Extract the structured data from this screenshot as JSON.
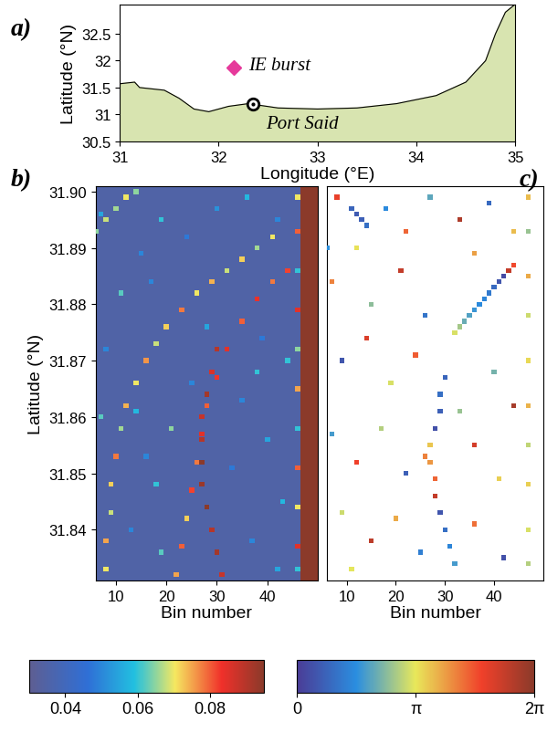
{
  "chart_data": [
    {
      "type": "map",
      "panel": "a)",
      "x_label": "Longitude (°E)",
      "y_label": "Latitude (°N)",
      "xlim": [
        31,
        35
      ],
      "xticks": [
        31,
        32,
        33,
        34,
        35
      ],
      "ylim": [
        30.5,
        33.05
      ],
      "yticks": [
        30.5,
        31,
        31.5,
        32,
        32.5
      ],
      "color": "#d8e4b0",
      "coastline": {
        "lon": [
          31.0,
          31.15,
          31.2,
          31.45,
          31.6,
          31.75,
          31.9,
          32.1,
          32.3,
          32.6,
          33.0,
          33.4,
          33.8,
          34.2,
          34.5,
          34.7,
          34.8,
          34.9,
          35.0
        ],
        "lat": [
          31.57,
          31.6,
          31.5,
          31.45,
          31.3,
          31.1,
          31.05,
          31.15,
          31.2,
          31.12,
          31.1,
          31.12,
          31.2,
          31.35,
          31.6,
          32.0,
          32.5,
          32.9,
          33.05
        ]
      },
      "points": [
        {
          "name": "IE burst",
          "lon": 32.15,
          "lat": 31.87,
          "color": "#e6399b",
          "marker": "diamond"
        },
        {
          "name": "Port Said",
          "lon": 32.35,
          "lat": 31.2,
          "color": "#000000",
          "marker": "circle"
        }
      ]
    },
    {
      "type": "heatmap",
      "panel": "b)",
      "x_label": "Bin number",
      "y_label": "Latitude (°N)",
      "xlim": [
        6,
        50
      ],
      "xticks": [
        10,
        20,
        30,
        40
      ],
      "ylim": [
        31.831,
        31.901
      ],
      "yticks": [
        31.84,
        31.85,
        31.86,
        31.87,
        31.88,
        31.89,
        {
          "value": 31.9,
          "label": "31.90"
        }
      ],
      "background": 0.035,
      "strip": {
        "bins": [
          47,
          50
        ],
        "value": 0.095
      },
      "cells": [
        [
          6,
          31.893,
          0.065
        ],
        [
          8,
          31.895,
          0.068
        ],
        [
          10,
          31.897,
          0.066
        ],
        [
          12,
          31.899,
          0.07
        ],
        [
          14,
          31.9,
          0.065
        ],
        [
          8,
          31.833,
          0.07
        ],
        [
          8,
          31.838,
          0.075
        ],
        [
          9,
          31.843,
          0.068
        ],
        [
          9,
          31.848,
          0.072
        ],
        [
          10,
          31.853,
          0.078
        ],
        [
          11,
          31.858,
          0.066
        ],
        [
          12,
          31.862,
          0.074
        ],
        [
          14,
          31.866,
          0.07
        ],
        [
          16,
          31.87,
          0.076
        ],
        [
          18,
          31.873,
          0.068
        ],
        [
          20,
          31.876,
          0.072
        ],
        [
          23,
          31.879,
          0.078
        ],
        [
          26,
          31.882,
          0.07
        ],
        [
          29,
          31.884,
          0.074
        ],
        [
          32,
          31.886,
          0.068
        ],
        [
          35,
          31.888,
          0.072
        ],
        [
          38,
          31.89,
          0.066
        ],
        [
          41,
          31.892,
          0.07
        ],
        [
          22,
          31.832,
          0.075
        ],
        [
          23,
          31.837,
          0.08
        ],
        [
          24,
          31.842,
          0.072
        ],
        [
          25,
          31.847,
          0.082
        ],
        [
          26,
          31.852,
          0.078
        ],
        [
          27,
          31.857,
          0.085
        ],
        [
          28,
          31.862,
          0.08
        ],
        [
          30,
          31.867,
          0.083
        ],
        [
          32,
          31.872,
          0.085
        ],
        [
          35,
          31.877,
          0.08
        ],
        [
          38,
          31.881,
          0.084
        ],
        [
          41,
          31.884,
          0.078
        ],
        [
          44,
          31.886,
          0.082
        ],
        [
          31,
          31.832,
          0.088
        ],
        [
          30,
          31.836,
          0.092
        ],
        [
          29,
          31.84,
          0.09
        ],
        [
          28,
          31.844,
          0.095
        ],
        [
          27,
          31.848,
          0.093
        ],
        [
          27,
          31.852,
          0.095
        ],
        [
          27,
          31.856,
          0.09
        ],
        [
          27,
          31.86,
          0.088
        ],
        [
          28,
          31.864,
          0.092
        ],
        [
          29,
          31.868,
          0.086
        ],
        [
          30,
          31.872,
          0.09
        ],
        [
          7,
          31.896,
          0.055
        ],
        [
          15,
          31.889,
          0.05
        ],
        [
          19,
          31.895,
          0.06
        ],
        [
          24,
          31.892,
          0.048
        ],
        [
          30,
          31.897,
          0.052
        ],
        [
          36,
          31.899,
          0.058
        ],
        [
          42,
          31.895,
          0.05
        ],
        [
          11,
          31.882,
          0.062
        ],
        [
          17,
          31.884,
          0.05
        ],
        [
          28,
          31.876,
          0.055
        ],
        [
          39,
          31.874,
          0.048
        ],
        [
          44,
          31.87,
          0.06
        ],
        [
          8,
          31.872,
          0.05
        ],
        [
          14,
          31.861,
          0.058
        ],
        [
          21,
          31.858,
          0.065
        ],
        [
          35,
          31.863,
          0.05
        ],
        [
          40,
          31.856,
          0.055
        ],
        [
          18,
          31.848,
          0.06
        ],
        [
          33,
          31.851,
          0.048
        ],
        [
          43,
          31.845,
          0.058
        ],
        [
          13,
          31.84,
          0.05
        ],
        [
          19,
          31.836,
          0.062
        ],
        [
          37,
          31.838,
          0.05
        ],
        [
          42,
          31.833,
          0.055
        ],
        [
          25,
          31.866,
          0.05
        ],
        [
          7,
          31.86,
          0.062
        ],
        [
          16,
          31.853,
          0.05
        ],
        [
          38,
          31.868,
          0.06
        ],
        [
          46,
          31.899,
          0.07
        ],
        [
          46,
          31.893,
          0.08
        ],
        [
          46,
          31.886,
          0.06
        ],
        [
          46,
          31.879,
          0.085
        ],
        [
          46,
          31.872,
          0.065
        ],
        [
          46,
          31.865,
          0.075
        ],
        [
          46,
          31.858,
          0.06
        ],
        [
          46,
          31.851,
          0.08
        ],
        [
          46,
          31.844,
          0.07
        ],
        [
          46,
          31.837,
          0.085
        ],
        [
          46,
          31.833,
          0.06
        ]
      ],
      "colorbar": {
        "range": [
          0.03,
          0.095
        ],
        "ticks": [
          0.04,
          0.06,
          0.08
        ]
      }
    },
    {
      "type": "heatmap",
      "panel": "c)",
      "x_label": "Bin number",
      "tick_labels": "x",
      "xlim": [
        6,
        50
      ],
      "xticks": [
        10,
        20,
        30,
        40
      ],
      "ylim": [
        31.831,
        31.901
      ],
      "cells": [
        [
          11,
          31.897,
          0.8
        ],
        [
          12,
          31.896,
          0.6
        ],
        [
          13,
          31.895,
          0.7
        ],
        [
          14,
          31.894,
          1.0
        ],
        [
          44,
          31.887,
          4.8
        ],
        [
          43,
          31.886,
          5.5
        ],
        [
          42,
          31.885,
          0.3
        ],
        [
          41,
          31.884,
          0.5
        ],
        [
          40,
          31.883,
          0.9
        ],
        [
          39,
          31.882,
          1.2
        ],
        [
          38,
          31.881,
          1.4
        ],
        [
          37,
          31.88,
          1.5
        ],
        [
          36,
          31.879,
          1.7
        ],
        [
          35,
          31.878,
          1.9
        ],
        [
          34,
          31.877,
          2.1
        ],
        [
          33,
          31.876,
          2.6
        ],
        [
          32,
          31.875,
          3.0
        ],
        [
          30,
          31.867,
          0.8
        ],
        [
          29,
          31.864,
          1.0
        ],
        [
          29,
          31.861,
          0.7
        ],
        [
          28,
          31.858,
          0.4
        ],
        [
          27,
          31.855,
          3.5
        ],
        [
          27,
          31.852,
          4.0
        ],
        [
          28,
          31.849,
          4.5
        ],
        [
          28,
          31.846,
          5.5
        ],
        [
          29,
          31.843,
          0.5
        ],
        [
          30,
          31.84,
          1.0
        ],
        [
          31,
          31.837,
          1.4
        ],
        [
          32,
          31.834,
          1.8
        ],
        [
          26,
          31.853,
          4.2
        ],
        [
          47,
          31.899,
          3.6
        ],
        [
          47,
          31.893,
          2.5
        ],
        [
          47,
          31.885,
          3.8
        ],
        [
          47,
          31.878,
          2.9
        ],
        [
          47,
          31.87,
          3.3
        ],
        [
          47,
          31.862,
          3.7
        ],
        [
          47,
          31.855,
          2.8
        ],
        [
          47,
          31.848,
          3.4
        ],
        [
          47,
          31.84,
          3.0
        ],
        [
          47,
          31.834,
          2.7
        ],
        [
          8,
          31.899,
          5.0
        ],
        [
          12,
          31.89,
          3.2
        ],
        [
          18,
          31.897,
          1.5
        ],
        [
          22,
          31.893,
          4.5
        ],
        [
          27,
          31.899,
          2.0
        ],
        [
          33,
          31.895,
          5.8
        ],
        [
          39,
          31.898,
          0.9
        ],
        [
          44,
          31.893,
          3.6
        ],
        [
          7,
          31.884,
          4.2
        ],
        [
          15,
          31.88,
          2.4
        ],
        [
          21,
          31.886,
          5.5
        ],
        [
          26,
          31.878,
          1.1
        ],
        [
          36,
          31.889,
          3.9
        ],
        [
          9,
          31.87,
          0.5
        ],
        [
          14,
          31.874,
          5.2
        ],
        [
          19,
          31.866,
          3.0
        ],
        [
          24,
          31.871,
          4.6
        ],
        [
          40,
          31.868,
          2.2
        ],
        [
          44,
          31.862,
          5.9
        ],
        [
          7,
          31.857,
          1.8
        ],
        [
          12,
          31.852,
          4.9
        ],
        [
          17,
          31.858,
          2.7
        ],
        [
          22,
          31.85,
          0.7
        ],
        [
          36,
          31.855,
          5.3
        ],
        [
          41,
          31.849,
          3.4
        ],
        [
          9,
          31.843,
          2.9
        ],
        [
          15,
          31.838,
          5.6
        ],
        [
          20,
          31.842,
          3.8
        ],
        [
          25,
          31.836,
          1.3
        ],
        [
          36,
          31.841,
          4.4
        ],
        [
          42,
          31.835,
          0.4
        ],
        [
          11,
          31.833,
          3.1
        ],
        [
          33,
          31.861,
          2.5
        ],
        [
          6,
          31.89,
          1.6
        ]
      ],
      "colorbar": {
        "range": [
          0,
          6.28319
        ],
        "ticks": [
          0,
          {
            "value": 3.14159,
            "label": "π"
          },
          {
            "value": 6.28319,
            "label": "2π"
          }
        ]
      }
    }
  ]
}
